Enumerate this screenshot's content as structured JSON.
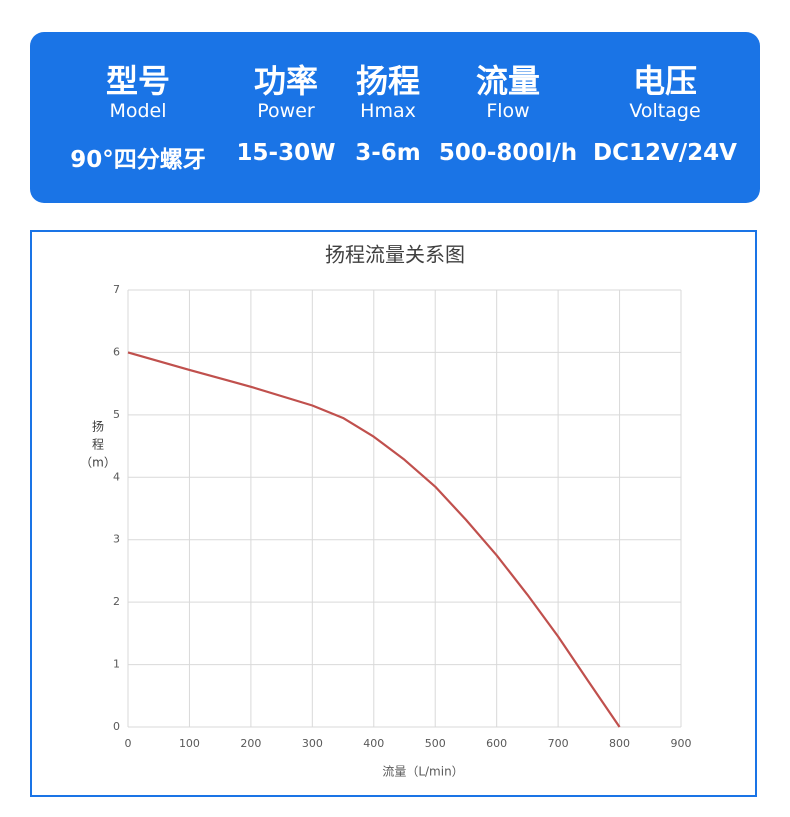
{
  "header": {
    "columns": [
      {
        "title": "型号",
        "subtitle": "Model",
        "value": "90°四分螺牙"
      },
      {
        "title": "功率",
        "subtitle": "Power",
        "value": "15-30W"
      },
      {
        "title": "扬程",
        "subtitle": "Hmax",
        "value": "3-6m"
      },
      {
        "title": "流量",
        "subtitle": "Flow",
        "value": "500-800l/h"
      },
      {
        "title": "电压",
        "subtitle": "Voltage",
        "value": "DC12V/24V"
      }
    ]
  },
  "chart_data": {
    "type": "line",
    "title": "扬程流量关系图",
    "x_label": "流量（L/min）",
    "y_label": [
      "扬",
      "程",
      "（m）"
    ],
    "x": [
      0,
      100,
      200,
      300,
      350,
      400,
      450,
      500,
      550,
      600,
      650,
      700,
      750,
      800
    ],
    "series": [
      {
        "color": "#c0504d",
        "values": [
          6,
          5.72,
          5.45,
          5.15,
          4.95,
          4.65,
          4.28,
          3.85,
          3.32,
          2.75,
          2.12,
          1.45,
          0.72,
          0
        ]
      }
    ],
    "xlim": [
      0,
      900
    ],
    "xticks": [
      0,
      100,
      200,
      300,
      400,
      500,
      600,
      700,
      800,
      900
    ],
    "ylim": [
      0,
      7
    ],
    "yticks": [
      0,
      1,
      2,
      3,
      4,
      5,
      6,
      7
    ],
    "grid": true
  }
}
